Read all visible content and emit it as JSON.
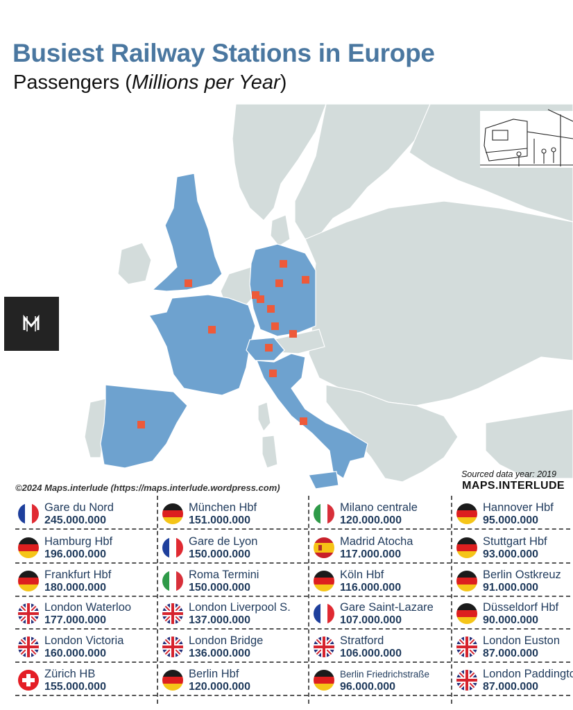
{
  "title": "Busiest Railway Stations in Europe",
  "subtitle_prefix": "Passengers (",
  "subtitle_italic": "Millions per Year",
  "subtitle_suffix": ")",
  "copyright": "©2024 Maps.interlude (https://maps.interlude.wordpress.com)",
  "sourced": "Sourced data year: 2019",
  "brand": "MAPS.INTERLUDE",
  "colors": {
    "highlight_country": "#6ea2cf",
    "other_country": "#d3dcdb",
    "sea": "#ffffff",
    "marker": "#ee5a3a",
    "title": "#4a77a0"
  },
  "stations": [
    {
      "name": "Gare du Nord",
      "passengers": "245.000.000",
      "country": "france"
    },
    {
      "name": "Hamburg Hbf",
      "passengers": "196.000.000",
      "country": "germany"
    },
    {
      "name": "Frankfurt Hbf",
      "passengers": "180.000.000",
      "country": "germany"
    },
    {
      "name": "London Waterloo",
      "passengers": "177.000.000",
      "country": "uk"
    },
    {
      "name": "London Victoria",
      "passengers": "160.000.000",
      "country": "uk"
    },
    {
      "name": "Zürich HB",
      "passengers": "155.000.000",
      "country": "switzerland"
    },
    {
      "name": "München Hbf",
      "passengers": "151.000.000",
      "country": "germany"
    },
    {
      "name": "Gare de Lyon",
      "passengers": "150.000.000",
      "country": "france"
    },
    {
      "name": "Roma Termini",
      "passengers": "150.000.000",
      "country": "italy"
    },
    {
      "name": "London Liverpool S.",
      "passengers": "137.000.000",
      "country": "uk"
    },
    {
      "name": "London Bridge",
      "passengers": "136.000.000",
      "country": "uk"
    },
    {
      "name": "Berlin Hbf",
      "passengers": "120.000.000",
      "country": "germany"
    },
    {
      "name": "Milano centrale",
      "passengers": "120.000.000",
      "country": "italy"
    },
    {
      "name": "Madrid Atocha",
      "passengers": "117.000.000",
      "country": "spain"
    },
    {
      "name": "Köln Hbf",
      "passengers": "116.000.000",
      "country": "germany"
    },
    {
      "name": "Gare Saint-Lazare",
      "passengers": "107.000.000",
      "country": "france"
    },
    {
      "name": "Stratford",
      "passengers": "106.000.000",
      "country": "uk"
    },
    {
      "name": "Berlin Friedrichstraße",
      "passengers": "96.000.000",
      "country": "germany"
    },
    {
      "name": "Hannover Hbf",
      "passengers": "95.000.000",
      "country": "germany"
    },
    {
      "name": "Stuttgart Hbf",
      "passengers": "93.000.000",
      "country": "germany"
    },
    {
      "name": "Berlin Ostkreuz",
      "passengers": "91.000.000",
      "country": "germany"
    },
    {
      "name": "Düsseldorf Hbf",
      "passengers": "90.000.000",
      "country": "germany"
    },
    {
      "name": "London Euston",
      "passengers": "87.000.000",
      "country": "uk"
    },
    {
      "name": "London Paddington",
      "passengers": "87.000.000",
      "country": "uk"
    }
  ]
}
